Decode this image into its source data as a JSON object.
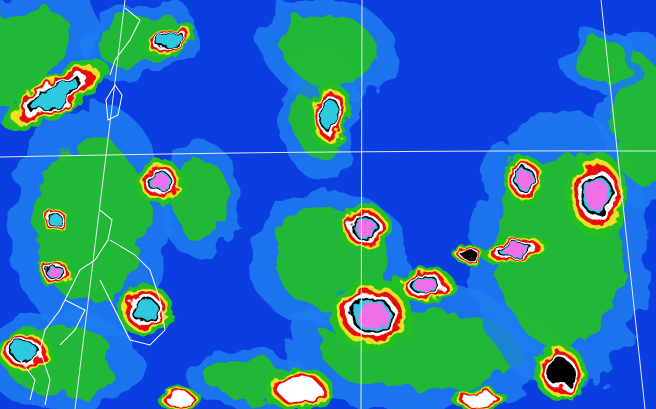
{
  "image": {
    "kind": "enhanced infrared satellite image",
    "palette": {
      "ocean_clear": "#0a3ee0",
      "low_cloud": "#1e7cf0",
      "thin_cloud": "#2ec8e0",
      "mid_cloud": "#22c022",
      "cold": "#f0e020",
      "colder": "#e81010",
      "very_cold": "#ffffff",
      "coldest": "#f070e8",
      "black_band": "#000000",
      "grid_lines": "#e8e8f0",
      "coastlines": "#ffffff"
    }
  }
}
